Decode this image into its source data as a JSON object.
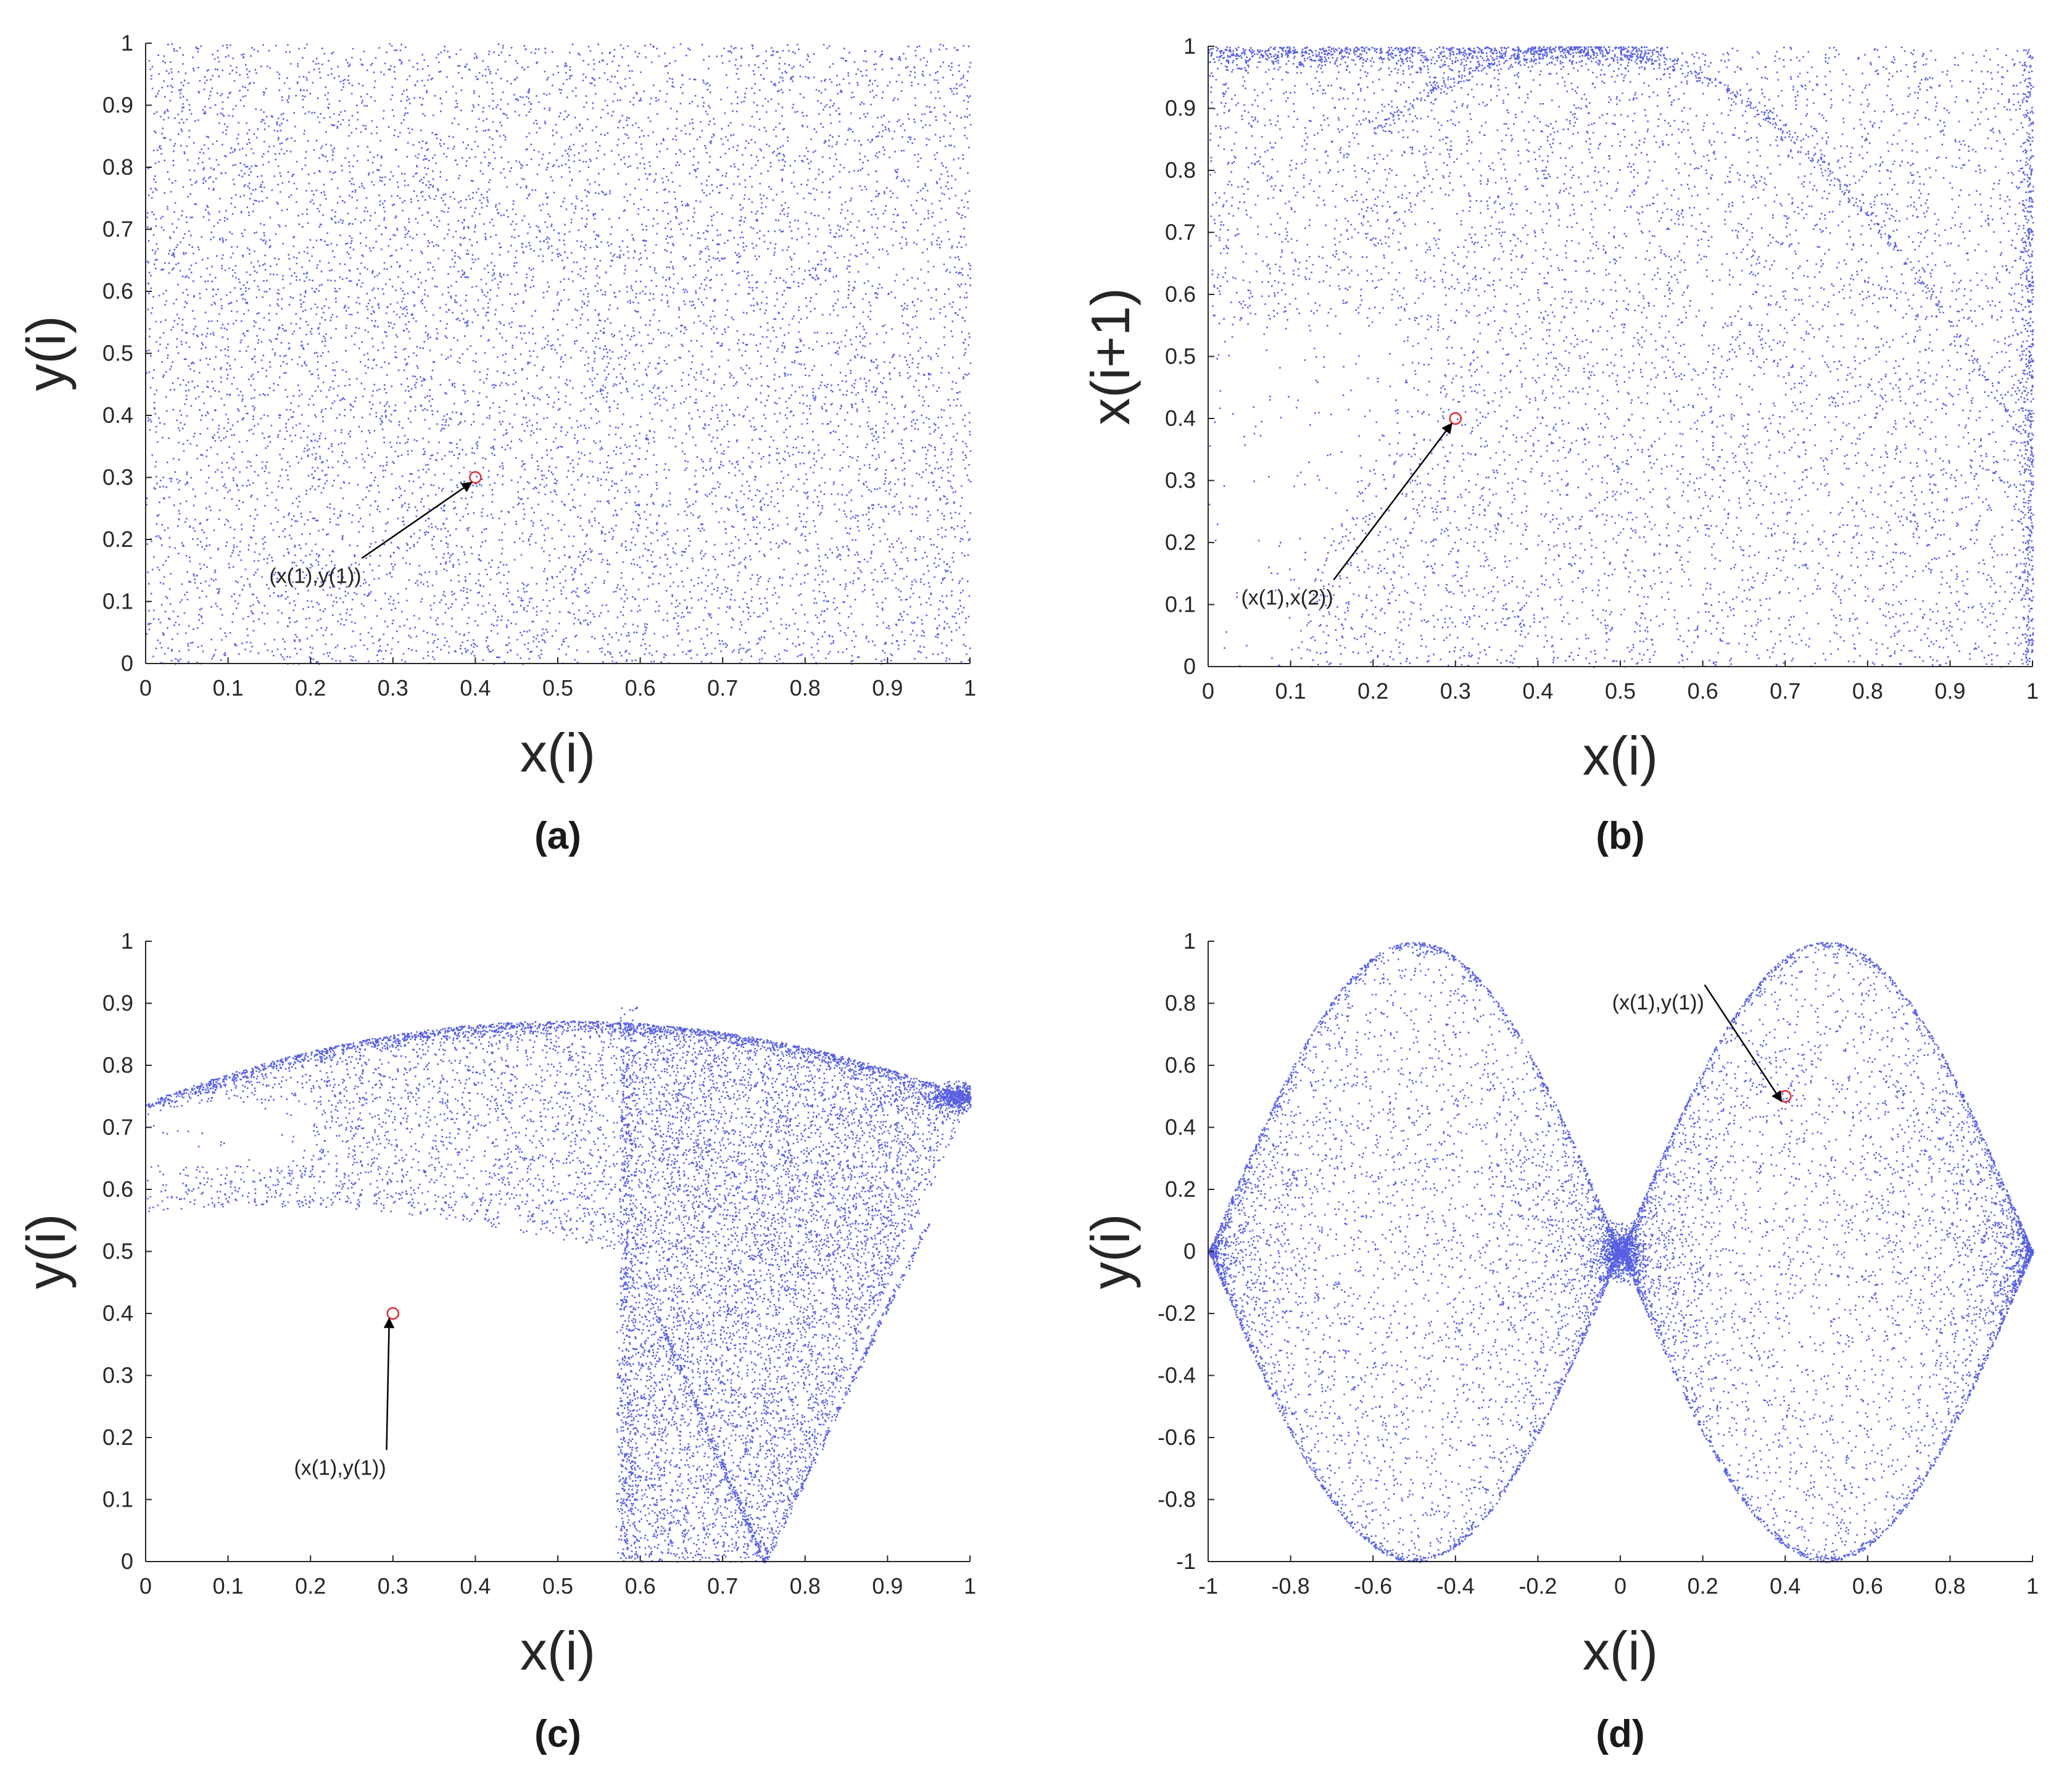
{
  "colors": {
    "points": "#1f2bd6",
    "marker": "#e0282f",
    "arrow": "#000000",
    "axis": "#262626"
  },
  "chart_data": [
    {
      "id": "a",
      "type": "scatter",
      "caption": "(a)",
      "xlabel": "x(i)",
      "ylabel": "y(i)",
      "xlim": [
        0,
        1
      ],
      "ylim": [
        0,
        1
      ],
      "xticks": [
        "0",
        "0.1",
        "0.2",
        "0.3",
        "0.4",
        "0.5",
        "0.6",
        "0.7",
        "0.8",
        "0.9",
        "1"
      ],
      "yticks": [
        "0",
        "0.1",
        "0.2",
        "0.3",
        "0.4",
        "0.5",
        "0.6",
        "0.7",
        "0.8",
        "0.9",
        "1"
      ],
      "distribution": "uniform",
      "initial_point": {
        "x": 0.4,
        "y": 0.3
      },
      "annotation": {
        "text": "(x(1),y(1))",
        "x": 0.15,
        "y": 0.13
      }
    },
    {
      "id": "b",
      "type": "scatter",
      "caption": "(b)",
      "xlabel": "x(i)",
      "ylabel": "x(i+1)",
      "xlim": [
        0,
        1
      ],
      "ylim": [
        0,
        1
      ],
      "xticks": [
        "0",
        "0.1",
        "0.2",
        "0.3",
        "0.4",
        "0.5",
        "0.6",
        "0.7",
        "0.8",
        "0.9",
        "1"
      ],
      "yticks": [
        "0",
        "0.1",
        "0.2",
        "0.3",
        "0.4",
        "0.5",
        "0.6",
        "0.7",
        "0.8",
        "0.9",
        "1"
      ],
      "distribution": "return-map",
      "initial_point": {
        "x": 0.3,
        "y": 0.4
      },
      "annotation": {
        "text": "(x(1),x(2))",
        "x": 0.04,
        "y": 0.1
      }
    },
    {
      "id": "c",
      "type": "scatter",
      "caption": "(c)",
      "xlabel": "x(i)",
      "ylabel": "y(i)",
      "xlim": [
        0,
        1
      ],
      "ylim": [
        0,
        1
      ],
      "xticks": [
        "0",
        "0.1",
        "0.2",
        "0.3",
        "0.4",
        "0.5",
        "0.6",
        "0.7",
        "0.8",
        "0.9",
        "1"
      ],
      "yticks": [
        "0",
        "0.1",
        "0.2",
        "0.3",
        "0.4",
        "0.5",
        "0.6",
        "0.7",
        "0.8",
        "0.9",
        "1"
      ],
      "distribution": "attractor",
      "initial_point": {
        "x": 0.3,
        "y": 0.4
      },
      "annotation": {
        "text": "(x(1),y(1))",
        "x": 0.18,
        "y": 0.14
      }
    },
    {
      "id": "d",
      "type": "scatter",
      "caption": "(d)",
      "xlabel": "x(i)",
      "ylabel": "y(i)",
      "xlim": [
        -1,
        1
      ],
      "ylim": [
        -1,
        1
      ],
      "xticks": [
        "-1",
        "-0.8",
        "-0.6",
        "-0.4",
        "-0.2",
        "0",
        "0.2",
        "0.4",
        "0.6",
        "0.8",
        "1"
      ],
      "yticks": [
        "-1",
        "-0.8",
        "-0.6",
        "-0.4",
        "-0.2",
        "0",
        "0.2",
        "0.4",
        "0.6",
        "0.8",
        "1"
      ],
      "distribution": "double-diamond",
      "initial_point": {
        "x": 0.4,
        "y": 0.5
      },
      "annotation": {
        "text": "(x(1),y(1))",
        "x": -0.02,
        "y": 0.78
      }
    }
  ]
}
